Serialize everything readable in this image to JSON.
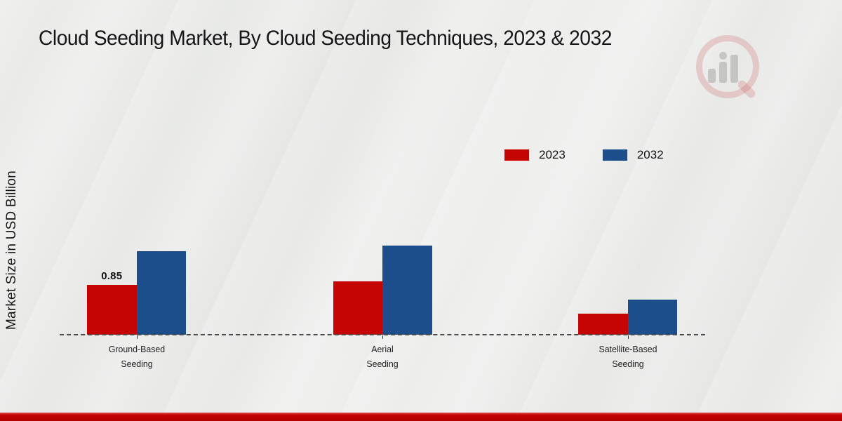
{
  "page": {
    "title": "Cloud Seeding Market, By Cloud Seeding Techniques, 2023 & 2032"
  },
  "watermark": {
    "icon": "magnifier-bar-chart-logo"
  },
  "chart_data": {
    "type": "bar",
    "title": "Cloud Seeding Market, By Cloud Seeding Techniques, 2023 & 2032",
    "xlabel": "",
    "ylabel": "Market Size in USD Billion",
    "categories": [
      "Ground-Based Seeding",
      "Aerial Seeding",
      "Satellite-Based Seeding"
    ],
    "series": [
      {
        "name": "2023",
        "color": "#c70404",
        "values": [
          0.85,
          0.91,
          0.36
        ]
      },
      {
        "name": "2032",
        "color": "#1b4e8a",
        "values": [
          1.42,
          1.52,
          0.6
        ]
      }
    ],
    "annotations": [
      {
        "series": "2023",
        "category": "Ground-Based Seeding",
        "text": "0.85"
      }
    ],
    "ylim": [
      0,
      1.6
    ],
    "grid": false,
    "legend_position": "upper-right-inside",
    "baseline_style": "dashed",
    "accent_footer_color": "#c40202"
  }
}
